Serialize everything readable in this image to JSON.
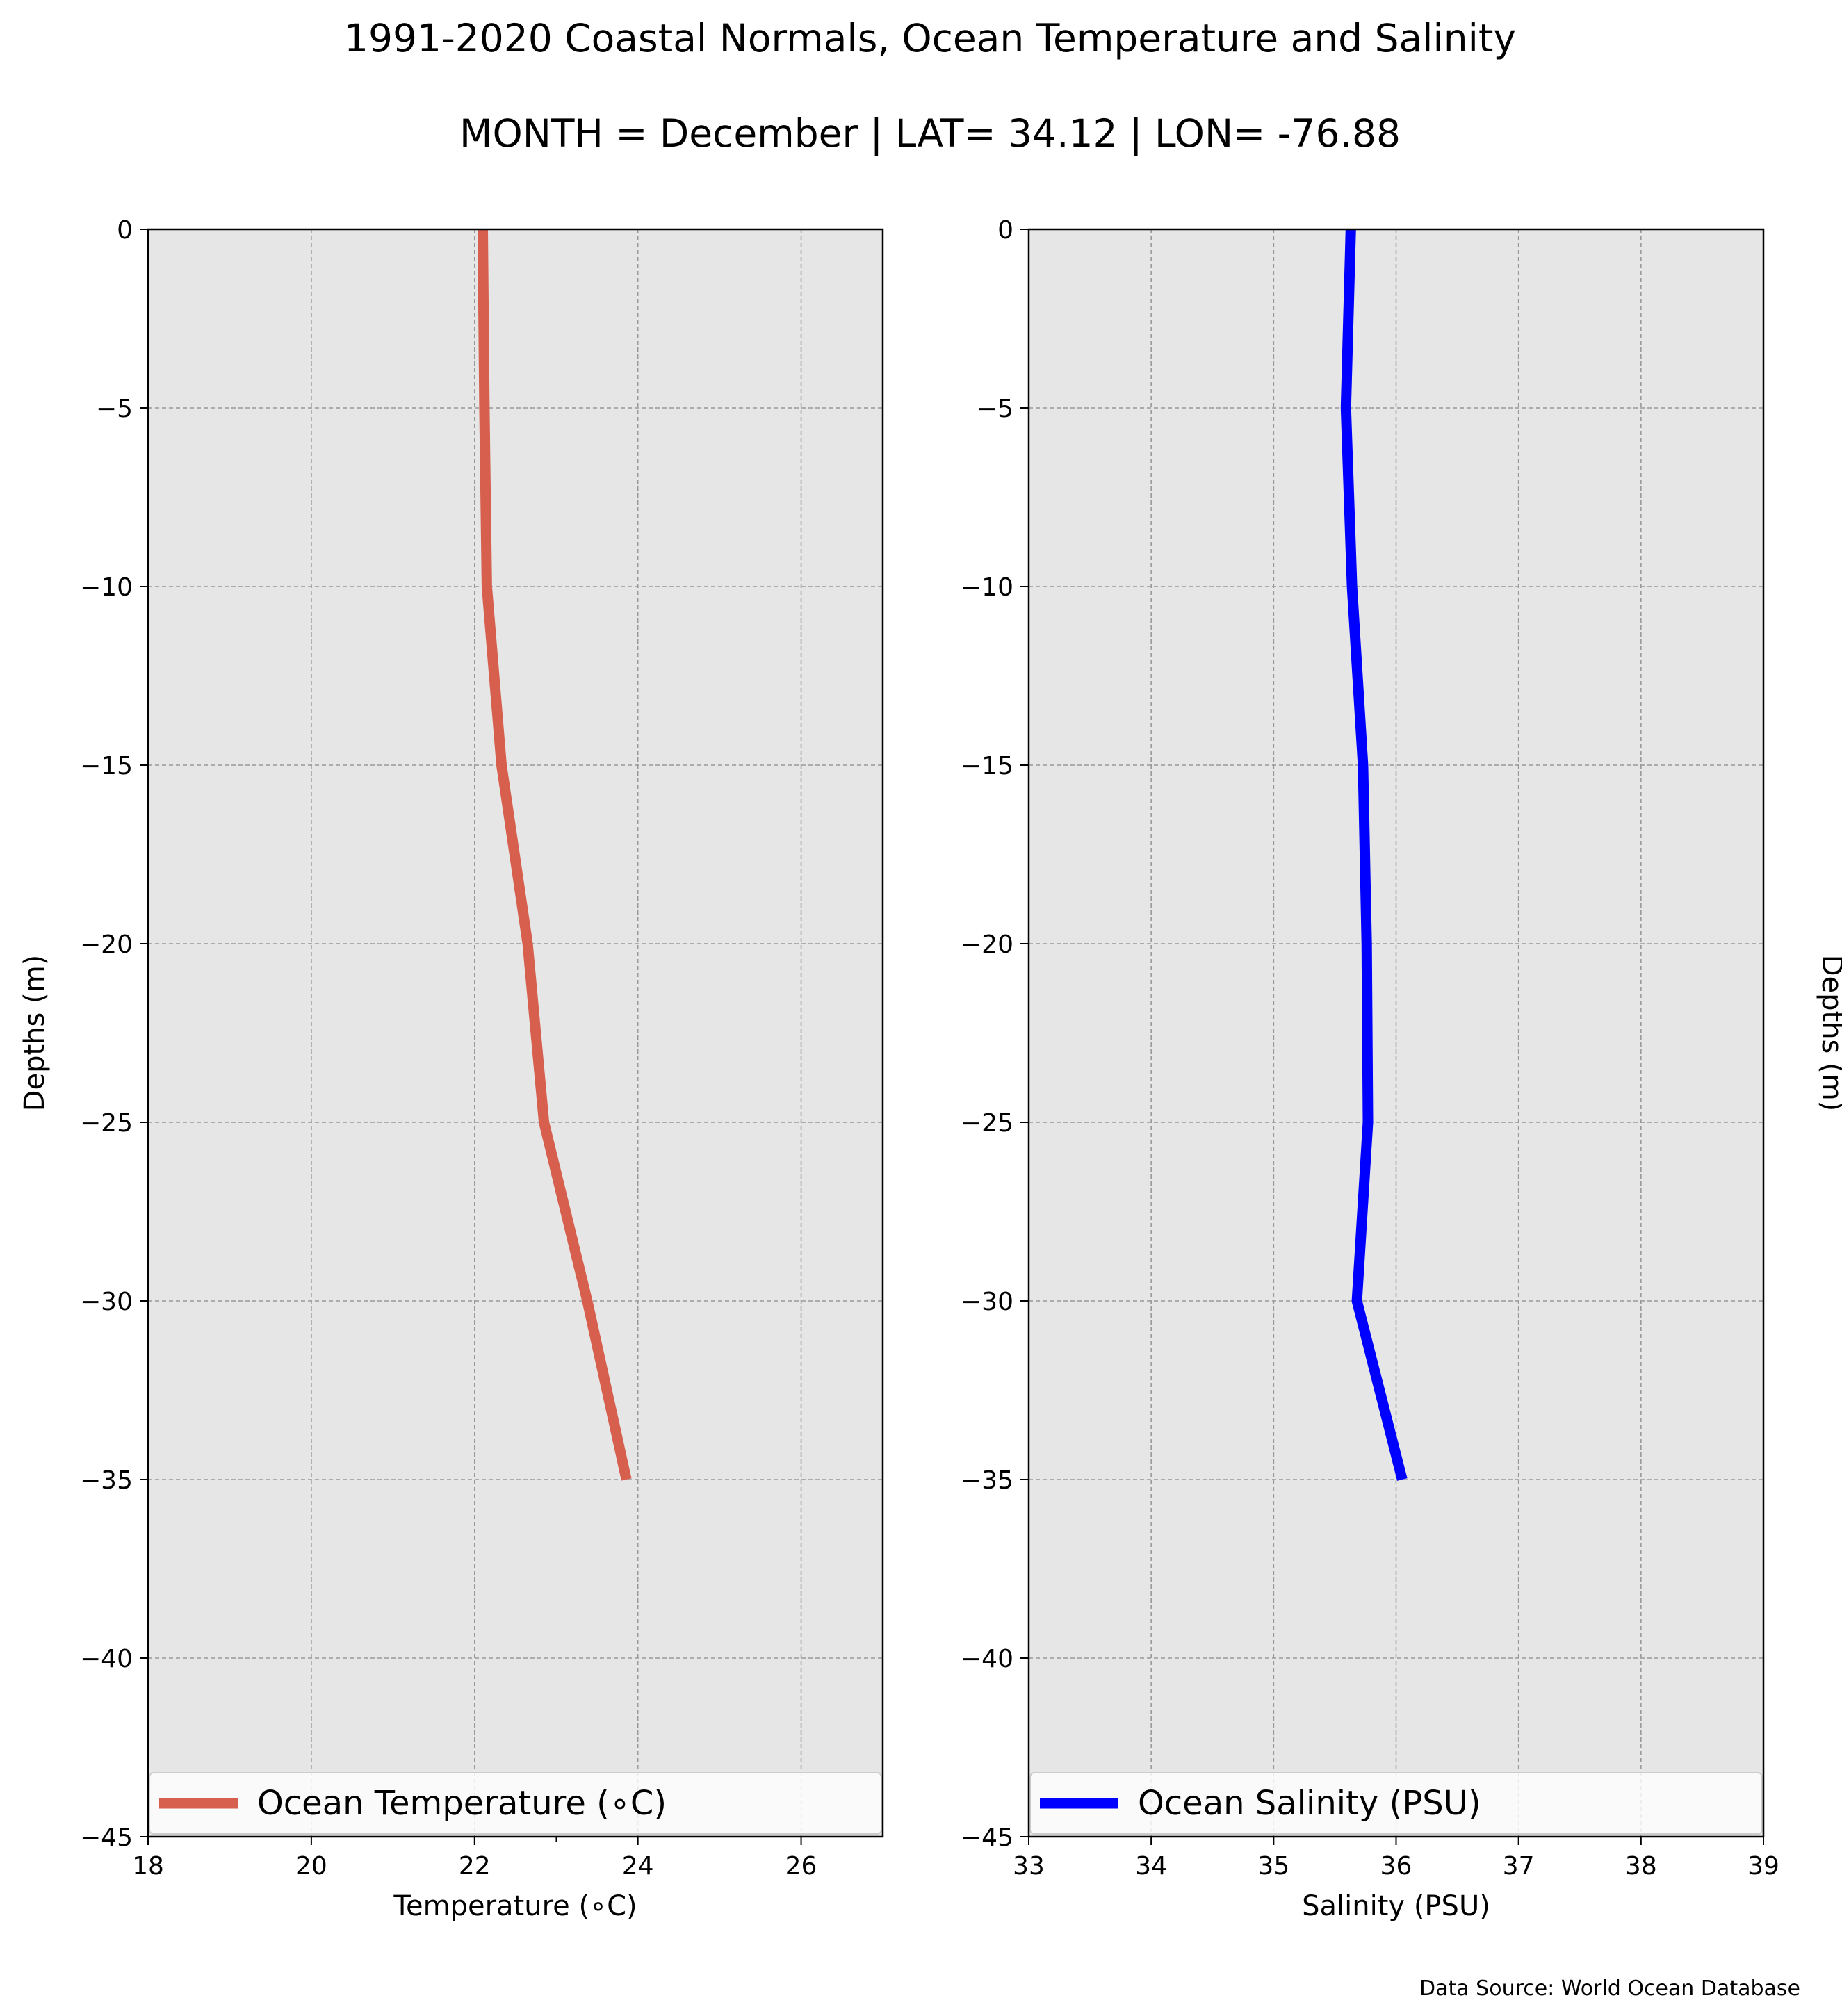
{
  "figure": {
    "title": "1991-2020 Coastal Normals, Ocean Temperature and Salinity",
    "subtitle": "MONTH = December | LAT= 34.12 | LON= -76.88",
    "source": "Data Source: World Ocean Database",
    "background_color": "#ffffff",
    "axes_facecolor": "#e6e6e6",
    "grid_color": "#999999"
  },
  "chart_data": [
    {
      "type": "line",
      "xlabel": "Temperature (∘C)",
      "ylabel": "Depths (m)",
      "ylabel_side": "left",
      "xlim": [
        18,
        27
      ],
      "ylim": [
        -45,
        0
      ],
      "xticks": [
        18,
        20,
        22,
        24,
        26
      ],
      "minor_xticks": [
        23
      ],
      "yticks": [
        0,
        -5,
        -10,
        -15,
        -20,
        -25,
        -30,
        -35,
        -40,
        -45
      ],
      "grid": true,
      "legend_placement": "lower center",
      "series": [
        {
          "name": "Ocean Temperature (∘C)",
          "color": "#d65f4e",
          "x": [
            22.1,
            22.12,
            22.15,
            22.33,
            22.65,
            22.85,
            23.38,
            23.86
          ],
          "y": [
            0,
            -5,
            -10,
            -15,
            -20,
            -25,
            -30,
            -35
          ]
        }
      ]
    },
    {
      "type": "line",
      "xlabel": "Salinity (PSU)",
      "ylabel": "Depths (m)",
      "ylabel_side": "right",
      "xlim": [
        33,
        39
      ],
      "ylim": [
        -45,
        0
      ],
      "xticks": [
        33,
        34,
        35,
        36,
        37,
        38,
        39
      ],
      "minor_xticks": [],
      "yticks": [
        0,
        -5,
        -10,
        -15,
        -20,
        -25,
        -30,
        -35,
        -40,
        -45
      ],
      "grid": true,
      "legend_placement": "lower center",
      "series": [
        {
          "name": "Ocean Salinity (PSU)",
          "color": "#0000ff",
          "x": [
            35.63,
            35.59,
            35.64,
            35.73,
            35.76,
            35.77,
            35.68,
            36.05
          ],
          "y": [
            0,
            -5,
            -10,
            -15,
            -20,
            -25,
            -30,
            -35
          ]
        }
      ]
    }
  ]
}
